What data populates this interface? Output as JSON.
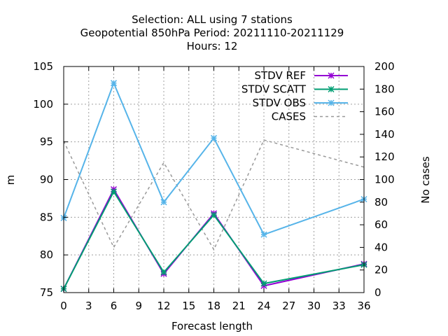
{
  "chart_data": {
    "type": "line",
    "title_lines": [
      "Selection: ALL using     7 stations",
      "Geopotential 850hPa   Period: 20211110-20211129",
      "Hours:  12"
    ],
    "xlabel": "Forecast length",
    "ylabel": "m",
    "y2label": "No cases",
    "x": [
      0,
      6,
      12,
      18,
      24,
      36
    ],
    "xlim": [
      0,
      36
    ],
    "xticks": [
      0,
      3,
      6,
      9,
      12,
      15,
      18,
      21,
      24,
      27,
      30,
      33,
      36
    ],
    "ylim": [
      75,
      105
    ],
    "yticks": [
      75,
      80,
      85,
      90,
      95,
      100,
      105
    ],
    "y2lim": [
      0,
      200
    ],
    "y2ticks": [
      0,
      20,
      40,
      60,
      80,
      100,
      120,
      140,
      160,
      180,
      200
    ],
    "grid": true,
    "legend_position": "top-right",
    "series": [
      {
        "name": "STDV REF",
        "axis": "left",
        "color": "#9400d3",
        "marker": "x-star",
        "dashed": false,
        "values": [
          75.5,
          88.7,
          77.5,
          85.5,
          75.9,
          78.8
        ]
      },
      {
        "name": "STDV SCATT",
        "axis": "left",
        "color": "#009e73",
        "marker": "x-star",
        "dashed": false,
        "values": [
          75.5,
          88.4,
          77.7,
          85.3,
          76.2,
          78.7
        ]
      },
      {
        "name": "STDV OBS",
        "axis": "left",
        "color": "#56b4e9",
        "marker": "x-star",
        "dashed": false,
        "values": [
          84.9,
          102.8,
          87.0,
          95.5,
          82.7,
          87.4
        ]
      },
      {
        "name": "CASES",
        "axis": "right",
        "color": "#999999",
        "marker": "none",
        "dashed": true,
        "values": [
          134,
          40,
          115,
          38,
          135,
          111
        ]
      }
    ]
  }
}
